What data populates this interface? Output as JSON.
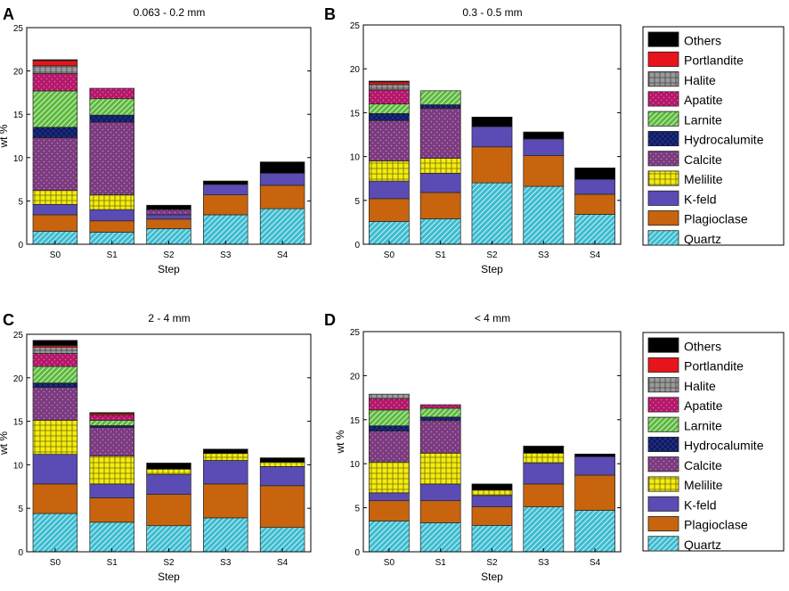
{
  "figure": {
    "components": [
      {
        "name": "Others",
        "fill": "#000000",
        "pattern": "none"
      },
      {
        "name": "Portlandite",
        "fill": "#e8141c",
        "pattern": "none"
      },
      {
        "name": "Halite",
        "fill": "#9a9a9a",
        "pattern": "grid"
      },
      {
        "name": "Apatite",
        "fill": "#b5176a",
        "pattern": "dots"
      },
      {
        "name": "Larnite",
        "fill": "#5cba3c",
        "pattern": "diag"
      },
      {
        "name": "Hydrocalumite",
        "fill": "#1c2c8c",
        "pattern": "cross"
      },
      {
        "name": "Calcite",
        "fill": "#7c3a80",
        "pattern": "dots"
      },
      {
        "name": "Melilite",
        "fill": "#f4ec10",
        "pattern": "grid"
      },
      {
        "name": "K-feld",
        "fill": "#5a4cb4",
        "pattern": "none"
      },
      {
        "name": "Plagioclase",
        "fill": "#c8640e",
        "pattern": "none"
      },
      {
        "name": "Quartz",
        "fill": "#3cbcd0",
        "pattern": "diag"
      }
    ]
  },
  "chart_data": [
    {
      "panel": "A",
      "type": "bar",
      "stacked": true,
      "title": "0.063 - 0.2 mm",
      "xlabel": "Step",
      "ylabel": "wt %",
      "ylim": [
        0,
        25
      ],
      "yticks": [
        0,
        5,
        10,
        15,
        20,
        25
      ],
      "categories": [
        "S0",
        "S1",
        "S2",
        "S3",
        "S4"
      ],
      "legend": "right",
      "series": [
        {
          "name": "Quartz",
          "values": [
            1.5,
            1.4,
            1.8,
            3.4,
            4.1
          ]
        },
        {
          "name": "Plagioclase",
          "values": [
            1.9,
            1.3,
            1.1,
            2.3,
            2.7
          ]
        },
        {
          "name": "K-feld",
          "values": [
            1.2,
            1.3,
            0.5,
            1.2,
            1.4
          ]
        },
        {
          "name": "Melilite",
          "values": [
            1.6,
            1.7,
            0.0,
            0.0,
            0.0
          ]
        },
        {
          "name": "Calcite",
          "values": [
            6.1,
            8.4,
            0.6,
            0.0,
            0.0
          ]
        },
        {
          "name": "Hydrocalumite",
          "values": [
            1.2,
            0.8,
            0.0,
            0.0,
            0.0
          ]
        },
        {
          "name": "Larnite",
          "values": [
            4.2,
            1.9,
            0.0,
            0.0,
            0.0
          ]
        },
        {
          "name": "Apatite",
          "values": [
            2.0,
            1.2,
            0.0,
            0.0,
            0.0
          ]
        },
        {
          "name": "Halite",
          "values": [
            0.9,
            0.0,
            0.0,
            0.0,
            0.0
          ]
        },
        {
          "name": "Portlandite",
          "values": [
            0.6,
            0.0,
            0.0,
            0.0,
            0.0
          ]
        },
        {
          "name": "Others",
          "values": [
            0.1,
            0.0,
            0.5,
            0.4,
            1.3
          ]
        }
      ]
    },
    {
      "panel": "B",
      "type": "bar",
      "stacked": true,
      "title": "0.3 - 0.5 mm",
      "xlabel": "Step",
      "ylabel": "",
      "ylim": [
        0,
        25
      ],
      "yticks": [
        0,
        5,
        10,
        15,
        20,
        25
      ],
      "categories": [
        "S0",
        "S1",
        "S2",
        "S3",
        "S4"
      ],
      "legend": "right",
      "series": [
        {
          "name": "Quartz",
          "values": [
            2.6,
            2.9,
            7.0,
            6.6,
            3.4
          ]
        },
        {
          "name": "Plagioclase",
          "values": [
            2.6,
            3.0,
            4.1,
            3.5,
            2.3
          ]
        },
        {
          "name": "K-feld",
          "values": [
            2.0,
            2.2,
            2.3,
            1.9,
            1.7
          ]
        },
        {
          "name": "Melilite",
          "values": [
            2.3,
            1.7,
            0.0,
            0.0,
            0.0
          ]
        },
        {
          "name": "Calcite",
          "values": [
            4.6,
            5.7,
            0.0,
            0.0,
            0.0
          ]
        },
        {
          "name": "Hydrocalumite",
          "values": [
            0.8,
            0.4,
            0.0,
            0.0,
            0.0
          ]
        },
        {
          "name": "Larnite",
          "values": [
            1.1,
            1.6,
            0.0,
            0.0,
            0.0
          ]
        },
        {
          "name": "Apatite",
          "values": [
            1.6,
            0.0,
            0.0,
            0.0,
            0.0
          ]
        },
        {
          "name": "Halite",
          "values": [
            0.6,
            0.0,
            0.0,
            0.0,
            0.0
          ]
        },
        {
          "name": "Portlandite",
          "values": [
            0.3,
            0.0,
            0.0,
            0.0,
            0.0
          ]
        },
        {
          "name": "Others",
          "values": [
            0.1,
            0.0,
            1.1,
            0.8,
            1.3
          ]
        }
      ]
    },
    {
      "panel": "C",
      "type": "bar",
      "stacked": true,
      "title": "2 - 4 mm",
      "xlabel": "Step",
      "ylabel": "wt %",
      "ylim": [
        0,
        25
      ],
      "yticks": [
        0,
        5,
        10,
        15,
        20,
        25
      ],
      "categories": [
        "S0",
        "S1",
        "S2",
        "S3",
        "S4"
      ],
      "legend": "none",
      "series": [
        {
          "name": "Quartz",
          "values": [
            4.4,
            3.4,
            3.0,
            3.9,
            2.8
          ]
        },
        {
          "name": "Plagioclase",
          "values": [
            3.4,
            2.8,
            3.6,
            3.9,
            4.8
          ]
        },
        {
          "name": "K-feld",
          "values": [
            3.4,
            1.6,
            2.3,
            2.7,
            2.2
          ]
        },
        {
          "name": "Melilite",
          "values": [
            3.9,
            3.2,
            0.6,
            0.8,
            0.5
          ]
        },
        {
          "name": "Calcite",
          "values": [
            3.8,
            3.3,
            0.0,
            0.0,
            0.0
          ]
        },
        {
          "name": "Hydrocalumite",
          "values": [
            0.5,
            0.2,
            0.0,
            0.0,
            0.0
          ]
        },
        {
          "name": "Larnite",
          "values": [
            1.9,
            0.6,
            0.0,
            0.0,
            0.0
          ]
        },
        {
          "name": "Apatite",
          "values": [
            1.5,
            0.6,
            0.0,
            0.0,
            0.0
          ]
        },
        {
          "name": "Halite",
          "values": [
            0.7,
            0.0,
            0.0,
            0.0,
            0.0
          ]
        },
        {
          "name": "Portlandite",
          "values": [
            0.2,
            0.2,
            0.0,
            0.0,
            0.0
          ]
        },
        {
          "name": "Others",
          "values": [
            0.6,
            0.1,
            0.7,
            0.5,
            0.5
          ]
        }
      ]
    },
    {
      "panel": "D",
      "type": "bar",
      "stacked": true,
      "title": "< 4 mm",
      "xlabel": "Step",
      "ylabel": "wt %",
      "ylim": [
        0,
        25
      ],
      "yticks": [
        0,
        5,
        10,
        15,
        20,
        25
      ],
      "categories": [
        "S0",
        "S1",
        "S2",
        "S3",
        "S4"
      ],
      "legend": "right",
      "series": [
        {
          "name": "Quartz",
          "values": [
            3.5,
            3.3,
            3.0,
            5.1,
            4.7
          ]
        },
        {
          "name": "Plagioclase",
          "values": [
            2.3,
            2.5,
            2.1,
            2.6,
            4.0
          ]
        },
        {
          "name": "K-feld",
          "values": [
            0.9,
            1.9,
            1.3,
            2.4,
            2.1
          ]
        },
        {
          "name": "Melilite",
          "values": [
            3.5,
            3.5,
            0.6,
            1.1,
            0.0
          ]
        },
        {
          "name": "Calcite",
          "values": [
            3.5,
            3.7,
            0.0,
            0.0,
            0.0
          ]
        },
        {
          "name": "Hydrocalumite",
          "values": [
            0.6,
            0.4,
            0.0,
            0.0,
            0.0
          ]
        },
        {
          "name": "Larnite",
          "values": [
            1.8,
            1.0,
            0.0,
            0.0,
            0.0
          ]
        },
        {
          "name": "Apatite",
          "values": [
            1.3,
            0.4,
            0.0,
            0.0,
            0.0
          ]
        },
        {
          "name": "Halite",
          "values": [
            0.5,
            0.0,
            0.0,
            0.0,
            0.0
          ]
        },
        {
          "name": "Portlandite",
          "values": [
            0.0,
            0.0,
            0.0,
            0.0,
            0.0
          ]
        },
        {
          "name": "Others",
          "values": [
            0.0,
            0.0,
            0.7,
            0.8,
            0.3
          ]
        }
      ]
    }
  ]
}
